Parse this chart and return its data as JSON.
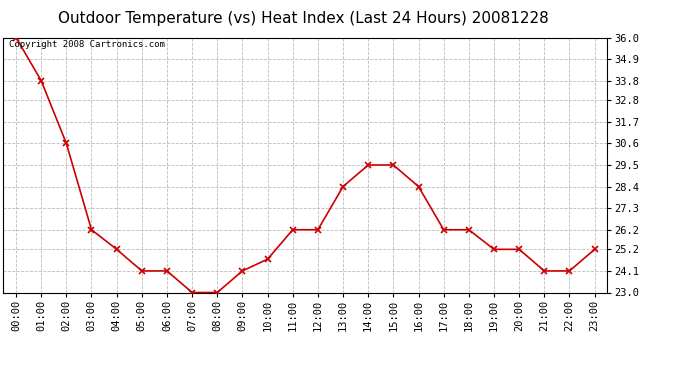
{
  "title": "Outdoor Temperature (vs) Heat Index (Last 24 Hours) 20081228",
  "copyright": "Copyright 2008 Cartronics.com",
  "x_labels": [
    "00:00",
    "01:00",
    "02:00",
    "03:00",
    "04:00",
    "05:00",
    "06:00",
    "07:00",
    "08:00",
    "09:00",
    "10:00",
    "11:00",
    "12:00",
    "13:00",
    "14:00",
    "15:00",
    "16:00",
    "17:00",
    "18:00",
    "19:00",
    "20:00",
    "21:00",
    "22:00",
    "23:00"
  ],
  "y_values": [
    36.0,
    33.8,
    30.6,
    26.2,
    25.2,
    24.1,
    24.1,
    23.0,
    23.0,
    24.1,
    24.7,
    26.2,
    26.2,
    28.4,
    29.5,
    29.5,
    28.4,
    26.2,
    26.2,
    25.2,
    25.2,
    24.1,
    24.1,
    25.2
  ],
  "line_color": "#cc0000",
  "marker": "x",
  "marker_color": "#cc0000",
  "marker_size": 4,
  "marker_linewidth": 1.2,
  "background_color": "#ffffff",
  "plot_bg_color": "#ffffff",
  "grid_color": "#bbbbbb",
  "grid_style": "--",
  "ylim": [
    23.0,
    36.0
  ],
  "yticks": [
    23.0,
    24.1,
    25.2,
    26.2,
    27.3,
    28.4,
    29.5,
    30.6,
    31.7,
    32.8,
    33.8,
    34.9,
    36.0
  ],
  "title_fontsize": 11,
  "tick_fontsize": 7.5,
  "copyright_fontsize": 6.5,
  "line_width": 1.2
}
